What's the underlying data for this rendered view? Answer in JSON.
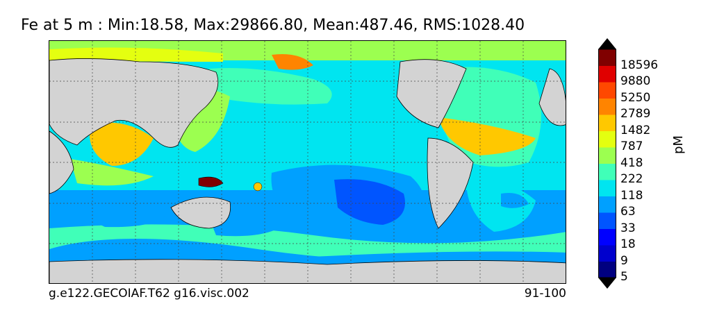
{
  "title": "Fe at 5 m : Min:18.58, Max:29866.80, Mean:487.46, RMS:1028.40",
  "caption_left": "g.e122.GECOIAF.T62 g16.visc.002",
  "caption_right": "91-100",
  "units": "pM",
  "colorbar": {
    "levels": [
      "18596",
      "9880",
      "5250",
      "2789",
      "1482",
      "787",
      "418",
      "222",
      "118",
      "63",
      "33",
      "18",
      "9",
      "5"
    ],
    "colors": [
      "#000080",
      "#0000cd",
      "#0000ff",
      "#0055ff",
      "#00a0ff",
      "#00e5f0",
      "#40ffb8",
      "#9cff50",
      "#e4ff10",
      "#ffc800",
      "#ff8400",
      "#ff4800",
      "#e00000",
      "#800000"
    ],
    "over_color": "#000000",
    "under_color": "#000000"
  },
  "land_color": "#d3d3d3"
}
